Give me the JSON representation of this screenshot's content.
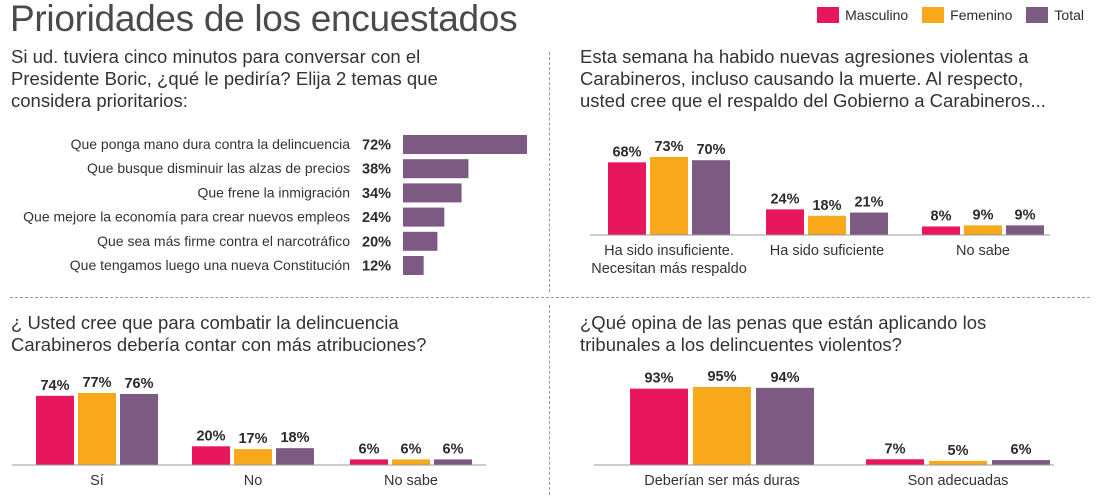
{
  "page_title": "Prioridades de los encuestados",
  "legend": [
    {
      "name": "Masculino",
      "color": "#e8175d"
    },
    {
      "name": "Femenino",
      "color": "#f7a81b"
    },
    {
      "name": "Total",
      "color": "#7d5a82"
    }
  ],
  "questions": {
    "q1": [
      "Si ud. tuviera cinco minutos para conversar con el",
      "Presidente Boric, ¿qué le pediría? Elija 2 temas que",
      "considera prioritarios:"
    ],
    "q2": [
      "Esta semana ha habido nuevas agresiones violentas a",
      "Carabineros, incluso causando la muerte. Al respecto,",
      "usted cree que el respaldo del Gobierno a Carabineros..."
    ],
    "q3": [
      "¿ Usted cree que para combatir la delincuencia",
      "Carabineros debería contar con más atribuciones?"
    ],
    "q4": [
      "¿Qué opina de las penas que están aplicando los",
      "tribunales a los delincuentes violentos?"
    ]
  },
  "chart_data": [
    {
      "id": "priorities",
      "type": "bar",
      "orientation": "horizontal",
      "categories": [
        "Que ponga mano dura contra la delincuencia",
        "Que busque disminuir las alzas de precios",
        "Que frene la inmigración",
        "Que mejore la economía para crear nuevos empleos",
        "Que sea más firme contra el narcotráfico",
        "Que tengamos luego una nueva Constitución"
      ],
      "values": [
        72,
        38,
        34,
        24,
        20,
        12
      ],
      "value_labels": [
        "72%",
        "38%",
        "34%",
        "24%",
        "20%",
        "12%"
      ],
      "color": "#7d5a82",
      "xlim": [
        0,
        72
      ]
    },
    {
      "id": "respaldo",
      "type": "bar",
      "categories": [
        [
          "Ha sido insuficiente.",
          "Necesitan más respaldo"
        ],
        [
          "Ha sido suficiente"
        ],
        [
          "No sabe"
        ]
      ],
      "series": [
        {
          "name": "Masculino",
          "values": [
            68,
            24,
            8
          ],
          "labels": [
            "68%",
            "24%",
            "8%"
          ]
        },
        {
          "name": "Femenino",
          "values": [
            73,
            18,
            9
          ],
          "labels": [
            "73%",
            "18%",
            "9%"
          ]
        },
        {
          "name": "Total",
          "values": [
            70,
            21,
            9
          ],
          "labels": [
            "70%",
            "21%",
            "9%"
          ]
        }
      ],
      "ylim": [
        0,
        73
      ]
    },
    {
      "id": "atribuciones",
      "type": "bar",
      "categories": [
        [
          "Sí"
        ],
        [
          "No"
        ],
        [
          "No sabe"
        ]
      ],
      "series": [
        {
          "name": "Masculino",
          "values": [
            74,
            20,
            6
          ],
          "labels": [
            "74%",
            "20%",
            "6%"
          ]
        },
        {
          "name": "Femenino",
          "values": [
            77,
            17,
            6
          ],
          "labels": [
            "77%",
            "17%",
            "6%"
          ]
        },
        {
          "name": "Total",
          "values": [
            76,
            18,
            6
          ],
          "labels": [
            "76%",
            "18%",
            "6%"
          ]
        }
      ],
      "ylim": [
        0,
        77
      ]
    },
    {
      "id": "penas",
      "type": "bar",
      "categories": [
        [
          "Deberían ser más duras"
        ],
        [
          "Son adecuadas"
        ]
      ],
      "series": [
        {
          "name": "Masculino",
          "values": [
            93,
            7
          ],
          "labels": [
            "93%",
            "7%"
          ]
        },
        {
          "name": "Femenino",
          "values": [
            95,
            5
          ],
          "labels": [
            "95%",
            "5%"
          ]
        },
        {
          "name": "Total",
          "values": [
            94,
            6
          ],
          "labels": [
            "94%",
            "6%"
          ]
        }
      ],
      "ylim": [
        0,
        95
      ]
    }
  ]
}
